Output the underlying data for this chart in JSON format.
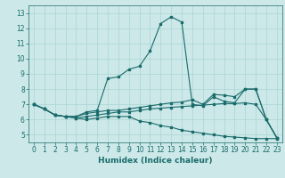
{
  "xlabel": "Humidex (Indice chaleur)",
  "xlim": [
    -0.5,
    23.5
  ],
  "ylim": [
    4.5,
    13.5
  ],
  "yticks": [
    5,
    6,
    7,
    8,
    9,
    10,
    11,
    12,
    13
  ],
  "xticks": [
    0,
    1,
    2,
    3,
    4,
    5,
    6,
    7,
    8,
    9,
    10,
    11,
    12,
    13,
    14,
    15,
    16,
    17,
    18,
    19,
    20,
    21,
    22,
    23
  ],
  "bg_color": "#cce8e8",
  "line_color": "#1a6b6b",
  "grid_color": "#aad4d4",
  "curves": [
    {
      "x": [
        0,
        1,
        2,
        3,
        4,
        5,
        6,
        7,
        8,
        9,
        10,
        11,
        12,
        13,
        14,
        15,
        16,
        17,
        18,
        19,
        20,
        21,
        22,
        23
      ],
      "y": [
        7.0,
        6.7,
        6.3,
        6.2,
        6.2,
        6.5,
        6.6,
        8.7,
        8.8,
        9.3,
        9.5,
        10.5,
        12.3,
        12.75,
        12.4,
        7.0,
        6.9,
        7.5,
        7.2,
        7.1,
        8.0,
        8.0,
        6.0,
        4.8
      ]
    },
    {
      "x": [
        0,
        1,
        2,
        3,
        4,
        5,
        6,
        7,
        8,
        9,
        10,
        11,
        12,
        13,
        14,
        15,
        16,
        17,
        18,
        19,
        20,
        21,
        22,
        23
      ],
      "y": [
        7.0,
        6.7,
        6.3,
        6.2,
        6.2,
        6.4,
        6.5,
        6.6,
        6.6,
        6.7,
        6.8,
        6.9,
        7.0,
        7.1,
        7.15,
        7.3,
        7.0,
        7.65,
        7.6,
        7.5,
        8.0,
        8.0,
        6.0,
        4.8
      ]
    },
    {
      "x": [
        0,
        1,
        2,
        3,
        4,
        5,
        6,
        7,
        8,
        9,
        10,
        11,
        12,
        13,
        14,
        15,
        16,
        17,
        18,
        19,
        20,
        21,
        22,
        23
      ],
      "y": [
        7.0,
        6.7,
        6.3,
        6.2,
        6.1,
        6.0,
        6.1,
        6.2,
        6.2,
        6.2,
        5.9,
        5.8,
        5.6,
        5.5,
        5.3,
        5.2,
        5.1,
        5.0,
        4.9,
        4.85,
        4.8,
        4.75,
        4.75,
        4.75
      ]
    },
    {
      "x": [
        0,
        1,
        2,
        3,
        4,
        5,
        6,
        7,
        8,
        9,
        10,
        11,
        12,
        13,
        14,
        15,
        16,
        17,
        18,
        19,
        20,
        21,
        22,
        23
      ],
      "y": [
        7.0,
        6.7,
        6.3,
        6.2,
        6.1,
        6.2,
        6.3,
        6.4,
        6.5,
        6.5,
        6.6,
        6.7,
        6.75,
        6.8,
        6.85,
        6.9,
        6.95,
        7.0,
        7.05,
        7.05,
        7.1,
        7.0,
        6.0,
        4.8
      ]
    }
  ]
}
